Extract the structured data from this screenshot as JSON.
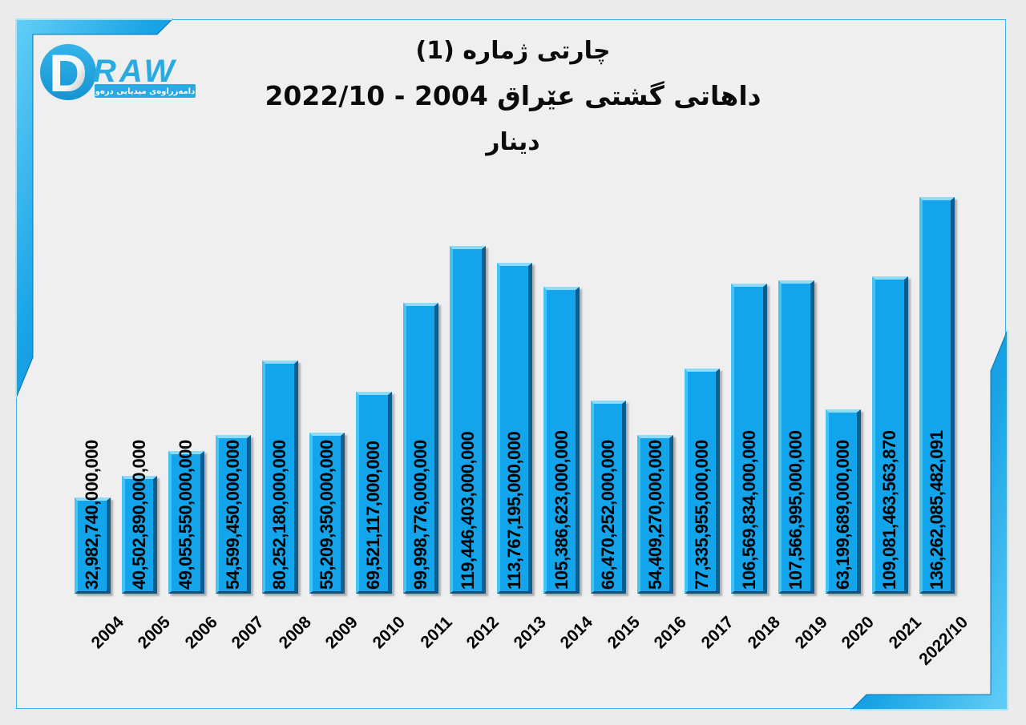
{
  "colors": {
    "accent": "#29abe2",
    "bar_fill": "#12a5ec",
    "bar_shadow_edge": "#0a5d8e",
    "background": "#ebebeb",
    "panel_border": "#3ab2e8",
    "label_text": "#000000"
  },
  "logo": {
    "brand_d": "D",
    "brand_rest": "RAW",
    "tagline": "دامەزراوەی میدیایی درەو"
  },
  "title": {
    "line1": "چارتی ژمارە (1)",
    "line2": "داهاتی گشتی عێراق 2004 - 2022/10",
    "line3": "دینار"
  },
  "chart_data": {
    "type": "bar",
    "title": "چارتی ژمارە (1)",
    "subtitle": "داهاتی گشتی عێراق 2004 - 2022/10",
    "unit": "دینار",
    "xlabel": "",
    "ylabel": "",
    "grid": false,
    "legend": "none",
    "bar_color": "#12a5ec",
    "value_label_rotation_deg": 90,
    "category_rotation_deg": 45,
    "ylim": [
      0,
      140000000000000
    ],
    "categories": [
      "2004",
      "2005",
      "2006",
      "2007",
      "2008",
      "2009",
      "2010",
      "2011",
      "2012",
      "2013",
      "2014",
      "2015",
      "2016",
      "2017",
      "2018",
      "2019",
      "2020",
      "2021",
      "2022/10"
    ],
    "values": [
      32982740000000,
      40502890000000,
      49055550000000,
      54599450000000,
      80252180000000,
      55209350000000,
      69521117000000,
      99998776000000,
      119446403000000,
      113767195000000,
      105386623000000,
      66470252000000,
      54409270000000,
      77335955000000,
      106569834000000,
      107566995000000,
      63199689000000,
      109081463563870,
      136262085482091
    ],
    "value_labels": [
      "32,982,740,000,000",
      "40,502,890,000,000",
      "49,055,550,000,000",
      "54,599,450,000,000",
      "80,252,180,000,000",
      "55,209,350,000,000",
      "69,521,117,000,000",
      "99,998,776,000,000",
      "119,446,403,000,000",
      "113,767,195,000,000",
      "105,386,623,000,000",
      "66,470,252,000,000",
      "54,409,270,000,000",
      "77,335,955,000,000",
      "106,569,834,000,000",
      "107,566,995,000,000",
      "63,199,689,000,000",
      "109,081,463,563,870",
      "136,262,085,482,091"
    ]
  }
}
